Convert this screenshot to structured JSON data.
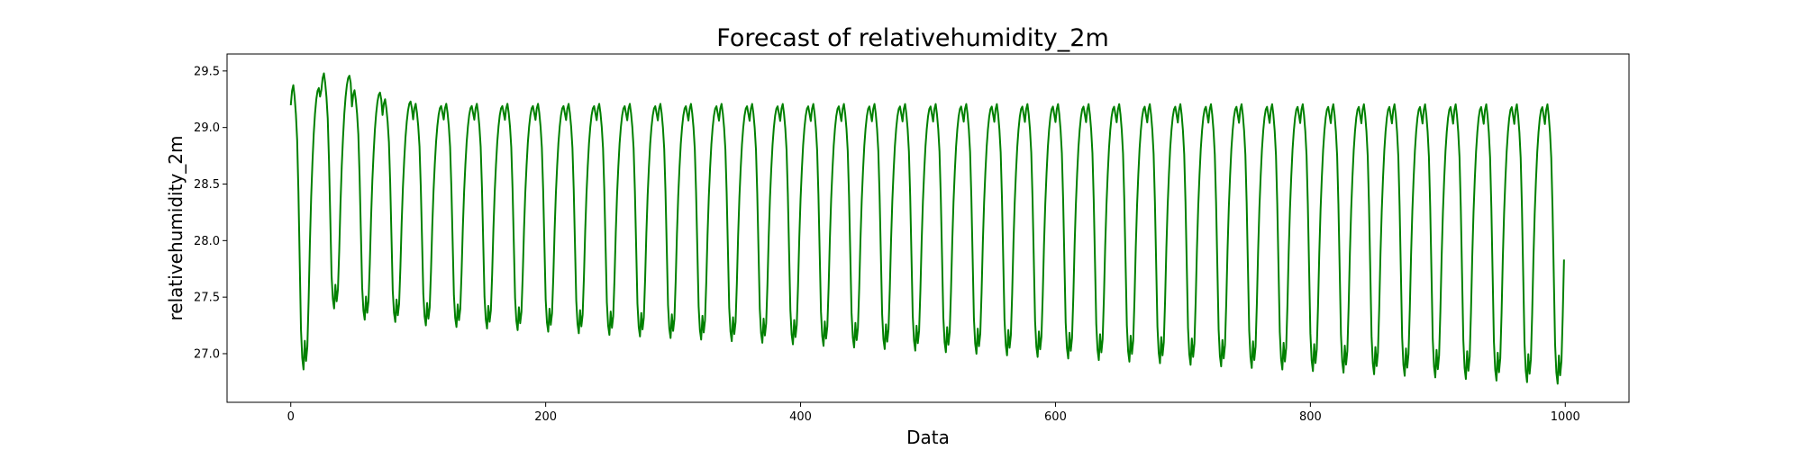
{
  "chart_data": {
    "type": "line",
    "title": "Forecast of relativehumidity_2m",
    "xlabel": "Data",
    "ylabel": "relativehumidity_2m",
    "xlim": [
      -50,
      1050
    ],
    "ylim": [
      26.57,
      29.65
    ],
    "xticks": [
      0,
      200,
      400,
      600,
      800,
      1000
    ],
    "yticks": [
      27.0,
      27.5,
      28.0,
      28.5,
      29.0,
      29.5
    ],
    "xtick_labels": [
      "0",
      "200",
      "400",
      "600",
      "800",
      "1000"
    ],
    "ytick_labels": [
      "27.0",
      "27.5",
      "28.0",
      "28.5",
      "29.0",
      "29.5"
    ],
    "grid": false,
    "legend": "none",
    "series": [
      {
        "color": "#008000",
        "x_start": 0,
        "x_end": 999,
        "period_points": 24,
        "initial_peak_values": [
          29.4,
          29.5,
          29.35,
          29.27
        ],
        "steady_peak_value": 29.23,
        "initial_trough_values": [
          26.86,
          27.4,
          27.3,
          27.28
        ],
        "trough_start": 27.25,
        "trough_end": 26.72
      }
    ]
  }
}
